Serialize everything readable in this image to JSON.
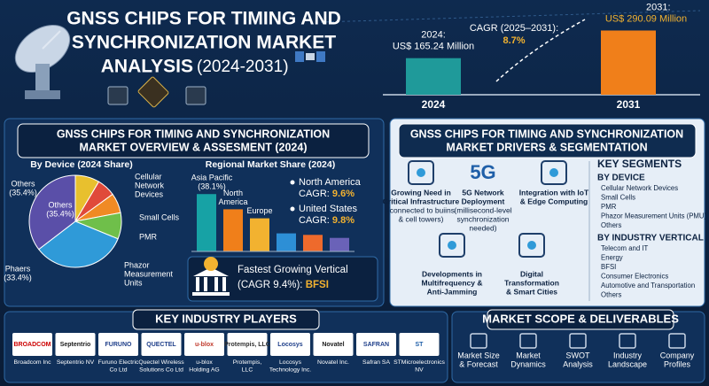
{
  "header": {
    "title_lines": [
      "GNSS CHIPS FOR TIMING AND",
      "SYNCHRONIZATION MARKET",
      "ANALYSIS"
    ],
    "years": "(2024-2031)"
  },
  "growth_chart": {
    "type": "bar",
    "categories": [
      "2024",
      "2031"
    ],
    "values": [
      165.24,
      290.09
    ],
    "value_label_titles": [
      "2024:",
      "2031:"
    ],
    "value_labels": [
      "US$ 165.24 Million",
      "US$ 290.09 Million"
    ],
    "colors": [
      "#1f9a9a",
      "#f07f1a"
    ],
    "cagr_label": "CAGR (2025–2031):",
    "cagr": "8.7%"
  },
  "overview": {
    "title_lines": [
      "GNSS CHIPS FOR TIMING AND SYNCHRONIZATION",
      "MARKET OVERVIEW & ASSESMENT (2024)"
    ],
    "device_chart": {
      "type": "pie",
      "title": "By Device (2024 Share)",
      "labels": [
        [
          "Cellular",
          "Network",
          "Devices"
        ],
        [
          "Small Cells"
        ],
        [
          "PMR"
        ],
        [
          "Phazor",
          "Measurement",
          "Units"
        ],
        [
          "Phaers",
          "(33.4%)"
        ],
        [
          "Others",
          "(35.4%)"
        ]
      ],
      "side_label": [
        "Others",
        "(35.4%)"
      ],
      "values": [
        8.5,
        6.5,
        7.0,
        9.2,
        33.4,
        35.4
      ],
      "colors": [
        "#e8c02e",
        "#e04a3a",
        "#f08a24",
        "#6fbf4a",
        "#2f9ad8",
        "#5a4fa8"
      ]
    },
    "region_chart": {
      "type": "bar",
      "title": "Regional Market Share (2024)",
      "categories": [
        [
          "Asia Pacific"
        ],
        [
          "North",
          "America"
        ],
        [
          "Europe"
        ],
        null,
        null,
        null
      ],
      "values": [
        38.1,
        28,
        22,
        12,
        11,
        9
      ],
      "value_labels": [
        "(38.1%)",
        null,
        null,
        null,
        null,
        null
      ],
      "colors": [
        "#17a2a5",
        "#f07f1a",
        "#f2b230",
        "#2d8fd6",
        "#ee6a2c",
        "#6a62b8"
      ]
    },
    "callouts": [
      {
        "name": "North America",
        "cagr_label": "CAGR:",
        "cagr": "9.6%"
      },
      {
        "name": "United States",
        "cagr_label": "CAGR:",
        "cagr": "9.8%"
      }
    ],
    "fastest": {
      "line1": "Fastest Growing Vertical",
      "cagr_label": "(CAGR 9.4%):",
      "vertical": "BFSI"
    }
  },
  "drivers": {
    "title_lines": [
      "GNSS CHIPS FOR TIMING AND SYNCHRONIZATION",
      "MARKET DRIVERS & SEGMENTATION"
    ],
    "items": [
      {
        "title_lines": [
          "Growing Need in",
          "Critical Infrastructure"
        ],
        "note_lines": [
          "(connected to buiins",
          "& cell towers)"
        ]
      },
      {
        "title_lines": [
          "5G Network",
          "Deployment"
        ],
        "note_lines": [
          "(millisecond-level",
          "synchronization",
          "needed)"
        ]
      },
      {
        "title_lines": [
          "Integration with IoT",
          "& Edge Computing"
        ]
      },
      {
        "title_lines": [
          "Developments in",
          "Multifrequency &",
          "Anti-Jamming"
        ]
      },
      {
        "title_lines": [
          "Digital",
          "Transformation",
          "& Smart Cities"
        ]
      }
    ],
    "icon_5g": "5G",
    "segments": {
      "title": "KEY SEGMENTS",
      "device_heading": "BY DEVICE",
      "devices": [
        "Cellular Network Devices",
        "Small Cells",
        "PMR",
        "Phazor Measurement Units (PMU)",
        "Others"
      ],
      "vertical_heading": "BY INDUSTRY VERTICAL",
      "verticals": [
        "Telecom and IT",
        "Energy",
        "BFSI",
        "Consumer Electronics",
        "Automotive and Transportation",
        "Others"
      ]
    }
  },
  "players": {
    "title": "KEY INDUSTRY PLAYERS",
    "items": [
      {
        "logo": "BROADCOM",
        "name_lines": [
          "Broadcom Inc"
        ]
      },
      {
        "logo": "Septentrio",
        "name_lines": [
          "Septentrio NV"
        ]
      },
      {
        "logo": "FURUNO",
        "name_lines": [
          "Furuno Electric",
          "Co Ltd"
        ]
      },
      {
        "logo": "QUECTEL",
        "name_lines": [
          "Quectel Wireless",
          "Solutions Co Ltd"
        ]
      },
      {
        "logo": "u-blox",
        "name_lines": [
          "u-blox",
          "Holding AG"
        ]
      },
      {
        "logo": "Protempis, LLC",
        "name_lines": [
          "Protempis,",
          "LLC"
        ]
      },
      {
        "logo": "Locosys",
        "name_lines": [
          "Locosys",
          "Technology Inc."
        ]
      },
      {
        "logo": "Novatel",
        "name_lines": [
          "Novatel Inc."
        ]
      },
      {
        "logo": "SAFRAN",
        "name_lines": [
          "Safran SA"
        ]
      },
      {
        "logo": "ST",
        "name_lines": [
          "STMicroelectronics",
          "NV"
        ]
      }
    ]
  },
  "scope": {
    "title": "MARKET SCOPE & DELIVERABLES",
    "items": [
      [
        "Market Size",
        "& Forecast"
      ],
      [
        "Market",
        "Dynamics"
      ],
      [
        "SWOT",
        "Analysis"
      ],
      [
        "Industry",
        "Landscape"
      ],
      [
        "Company",
        "Profiles"
      ]
    ]
  }
}
